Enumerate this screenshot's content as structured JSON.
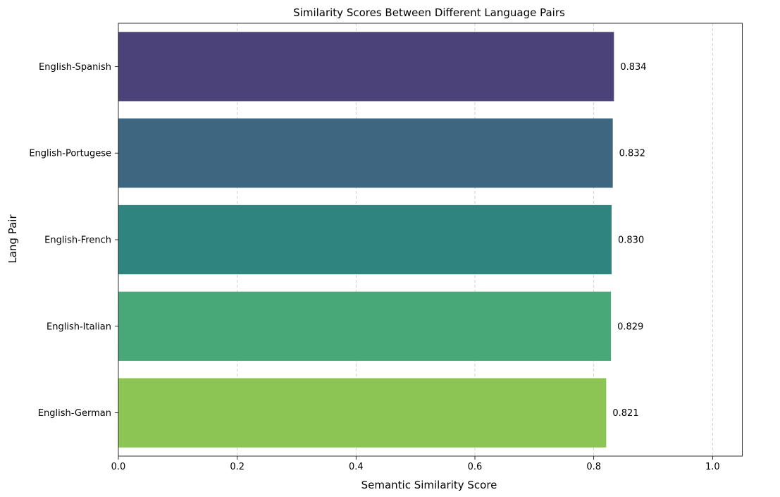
{
  "chart_data": {
    "type": "bar",
    "orientation": "horizontal",
    "title": "Similarity Scores Between Different Language Pairs",
    "xlabel": "Semantic Similarity Score",
    "ylabel": "Lang Pair",
    "xlim": [
      0,
      1.05
    ],
    "xticks": [
      0.0,
      0.2,
      0.4,
      0.6,
      0.8,
      1.0
    ],
    "xtick_labels": [
      "0.0",
      "0.2",
      "0.4",
      "0.6",
      "0.8",
      "1.0"
    ],
    "grid": "vertical dashed",
    "categories": [
      "English-Spanish",
      "English-Portugese",
      "English-French",
      "English-Italian",
      "English-German"
    ],
    "values": [
      0.834,
      0.832,
      0.83,
      0.829,
      0.821
    ],
    "value_labels": [
      "0.834",
      "0.832",
      "0.830",
      "0.829",
      "0.821"
    ],
    "colors": [
      "#4a4279",
      "#3e6680",
      "#2f847f",
      "#48a878",
      "#8dc555"
    ]
  }
}
